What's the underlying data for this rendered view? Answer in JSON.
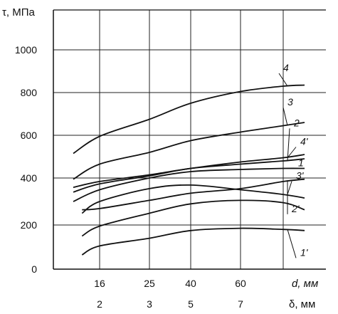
{
  "chart_data": {
    "type": "line",
    "ylabel": "τ, МПа",
    "xlabels": [
      "d, мм",
      "δ, мм"
    ],
    "y_ticks": [
      0,
      200,
      400,
      600,
      800,
      1000
    ],
    "y_gridlines": [
      200,
      400,
      600,
      800,
      1000
    ],
    "x_gridlines": [
      16,
      25,
      40,
      60,
      80
    ],
    "x_ticks_d": [
      {
        "label": "16",
        "at": 16
      },
      {
        "label": "25",
        "at": 25
      },
      {
        "label": "40",
        "at": 40
      },
      {
        "label": "60",
        "at": 60
      }
    ],
    "x_ticks_delta": [
      {
        "label": "2",
        "at": 16
      },
      {
        "label": "3",
        "at": 25
      },
      {
        "label": "5",
        "at": 40
      },
      {
        "label": "7",
        "at": 60
      }
    ],
    "xlim": [
      8,
      100
    ],
    "ylim": [
      0,
      1100
    ],
    "grid": true,
    "series": [
      {
        "name": "4",
        "x": [
          10,
          16,
          25,
          40,
          60,
          80,
          90
        ],
        "y": [
          515,
          595,
          675,
          750,
          805,
          830,
          835
        ],
        "label_at": [
          80,
          900
        ]
      },
      {
        "name": "3",
        "x": [
          10,
          16,
          25,
          40,
          60,
          80,
          90
        ],
        "y": [
          395,
          465,
          520,
          575,
          615,
          645,
          660
        ],
        "label_at": [
          82,
          740
        ]
      },
      {
        "name": "2",
        "x": [
          10,
          16,
          25,
          40,
          60,
          80,
          90
        ],
        "y": [
          340,
          375,
          410,
          445,
          465,
          480,
          490
        ],
        "label_at": [
          85,
          642
        ]
      },
      {
        "name": "4'",
        "x": [
          10,
          16,
          25,
          40,
          60,
          80,
          90
        ],
        "y": [
          360,
          385,
          415,
          445,
          475,
          495,
          510
        ],
        "label_at": [
          88,
          555
        ]
      },
      {
        "name": "1",
        "x": [
          10,
          16,
          25,
          40,
          60,
          80,
          90
        ],
        "y": [
          300,
          350,
          400,
          430,
          440,
          445,
          445
        ],
        "label_at": [
          87,
          455
        ]
      },
      {
        "name": "3'",
        "x": [
          12,
          16,
          25,
          40,
          60,
          80,
          90
        ],
        "y": [
          250,
          300,
          355,
          370,
          350,
          330,
          315
        ],
        "label_at": [
          86,
          395
        ]
      },
      {
        "name": "2'",
        "x": [
          12,
          16,
          25,
          40,
          60,
          80,
          90
        ],
        "y": [
          265,
          270,
          305,
          335,
          355,
          385,
          395
        ],
        "label_at": [
          84,
          255
        ]
      },
      {
        "name": "1'",
        "x": [
          12,
          16,
          25,
          40,
          60,
          80,
          90
        ],
        "y": [
          65,
          105,
          140,
          175,
          185,
          180,
          175
        ],
        "label_at": [
          88,
          60
        ]
      }
    ],
    "extra_series": [
      {
        "name": "",
        "x": [
          12,
          16,
          25,
          40,
          60,
          80,
          90
        ],
        "y": [
          150,
          195,
          250,
          290,
          305,
          295,
          265
        ]
      }
    ]
  }
}
